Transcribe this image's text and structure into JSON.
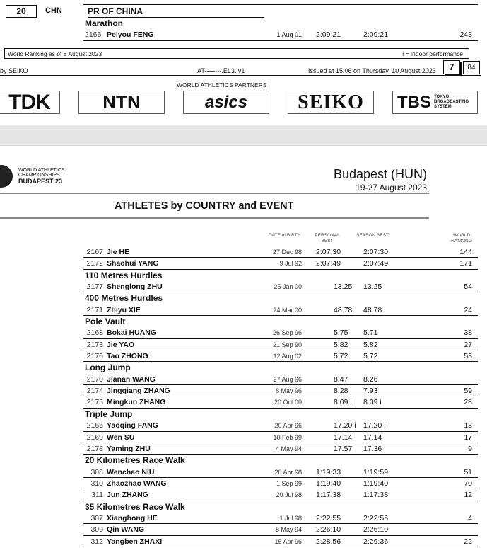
{
  "top_page": {
    "country_rank": "20",
    "country_code": "CHN",
    "country_name": "PR OF CHINA",
    "event": "Marathon",
    "athlete": {
      "bib": "2166",
      "name": "Peiyou FENG",
      "dob": "1 Aug 01",
      "pb": "2:09:21",
      "sb": "2:09:21",
      "wr": "243"
    },
    "ranking_note": "World Ranking as of 8 August 2023",
    "indoor_note": "i = Indoor performance",
    "timing": "by SEIKO",
    "code": "AT--------.EL3..v1",
    "issued": "Issued at 15:06 on Thursday, 10 August  2023",
    "page": "7",
    "total_pages": "84",
    "partners_label": "WORLD ATHLETICS PARTNERS",
    "partners": [
      "TDK",
      "NTN",
      "asics",
      "SEIKO",
      "TBS",
      "TOKYO BROADCASTING SYSTEM"
    ]
  },
  "header": {
    "logo_line1": "WORLD ATHLETICS",
    "logo_line2": "CHAMPIONSHIPS",
    "logo_line3": "BUDAPEST 23",
    "city": "Budapest (HUN)",
    "dates": "19-27 August 2023",
    "title": "ATHLETES by COUNTRY and EVENT"
  },
  "columns": {
    "dob": "DATE of BIRTH",
    "pb": "PERSONAL BEST",
    "sb": "SEASON BEST",
    "wr": "WORLD RANKING"
  },
  "rows": [
    {
      "bib": "2167",
      "name": "Jie HE",
      "dob": "27 Dec 98",
      "pb": "2:07:30",
      "sb": "2:07:30",
      "wr": "144"
    },
    {
      "bib": "2172",
      "name": "Shaohui YANG",
      "dob": "9 Jul 92",
      "pb": "2:07:49",
      "sb": "2:07:49",
      "wr": "171"
    },
    {
      "event": "110 Metres Hurdles"
    },
    {
      "bib": "2177",
      "name": "Shenglong ZHU",
      "dob": "25 Jan 00",
      "pb": "13.25",
      "sb": "13.25",
      "wr": "54"
    },
    {
      "event": "400 Metres Hurdles"
    },
    {
      "bib": "2171",
      "name": "Zhiyu XIE",
      "dob": "24 Mar 00",
      "pb": "48.78",
      "sb": "48.78",
      "wr": "24"
    },
    {
      "event": "Pole Vault"
    },
    {
      "bib": "2168",
      "name": "Bokai HUANG",
      "dob": "26 Sep 96",
      "pb": "5.75",
      "sb": "5.71",
      "wr": "38"
    },
    {
      "bib": "2173",
      "name": "Jie YAO",
      "dob": "21 Sep 90",
      "pb": "5.82",
      "sb": "5.82",
      "wr": "27"
    },
    {
      "bib": "2176",
      "name": "Tao ZHONG",
      "dob": "12 Aug 02",
      "pb": "5.72",
      "sb": "5.72",
      "wr": "53"
    },
    {
      "event": "Long Jump"
    },
    {
      "bib": "2170",
      "name": "Jianan WANG",
      "dob": "27 Aug 96",
      "pb": "8.47",
      "sb": "8.26",
      "wr": ""
    },
    {
      "bib": "2174",
      "name": "Jingqiang ZHANG",
      "dob": "8 May 96",
      "pb": "8.28",
      "sb": "7.93",
      "wr": "59"
    },
    {
      "bib": "2175",
      "name": "Mingkun ZHANG",
      "dob": "20 Oct 00",
      "pb": "8.09  i",
      "sb": "8.09  i",
      "wr": "28"
    },
    {
      "event": "Triple Jump"
    },
    {
      "bib": "2165",
      "name": "Yaoqing FANG",
      "dob": "20 Apr 96",
      "pb": "17.20  i",
      "sb": "17.20  i",
      "wr": "18"
    },
    {
      "bib": "2169",
      "name": "Wen SU",
      "dob": "10 Feb 99",
      "pb": "17.14",
      "sb": "17.14",
      "wr": "17"
    },
    {
      "bib": "2178",
      "name": "Yaming ZHU",
      "dob": "4 May 94",
      "pb": "17.57",
      "sb": "17.36",
      "wr": "9"
    },
    {
      "event": "20 Kilometres Race Walk"
    },
    {
      "bib": "308",
      "name": "Wenchao NIU",
      "dob": "20 Apr 98",
      "pb": "1:19:33",
      "sb": "1:19:59",
      "wr": "51"
    },
    {
      "bib": "310",
      "name": "Zhaozhao WANG",
      "dob": "1 Sep 99",
      "pb": "1:19:40",
      "sb": "1:19:40",
      "wr": "70"
    },
    {
      "bib": "311",
      "name": "Jun ZHANG",
      "dob": "20 Jul 98",
      "pb": "1:17:38",
      "sb": "1:17:38",
      "wr": "12"
    },
    {
      "event": "35 Kilometres Race Walk"
    },
    {
      "bib": "307",
      "name": "Xianghong HE",
      "dob": "1 Jul 98",
      "pb": "2:22:55",
      "sb": "2:22:55",
      "wr": "4"
    },
    {
      "bib": "309",
      "name": "Qin WANG",
      "dob": "8 May 94",
      "pb": "2:26:10",
      "sb": "2:26:10",
      "wr": ""
    },
    {
      "bib": "312",
      "name": "Yangben ZHAXI",
      "dob": "15 Apr 96",
      "pb": "2:28:56",
      "sb": "2:29:36",
      "wr": "22"
    }
  ]
}
